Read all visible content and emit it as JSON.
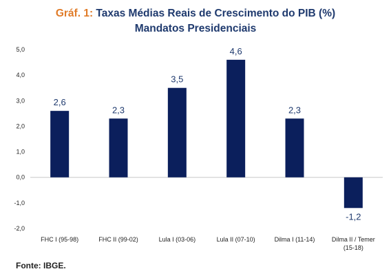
{
  "title": {
    "prefix": "Gráf. 1:",
    "line1": "Taxas Médias Reais de Crescimento do PIB (%)",
    "line2": "Mandatos Presidenciais"
  },
  "source": "Fonte: IBGE.",
  "colors": {
    "bar": "#0b1f5c",
    "accent": "#e07b28",
    "title": "#1f3a6e"
  },
  "chart_data": {
    "type": "bar",
    "categories": [
      [
        "FHC I (95-98)"
      ],
      [
        "FHC II (99-02)"
      ],
      [
        "Lula I (03-06)"
      ],
      [
        "Lula II (07-10)"
      ],
      [
        "Dilma I (11-14)"
      ],
      [
        "Dilma II / Temer",
        "(15-18)"
      ]
    ],
    "values": [
      2.6,
      2.3,
      3.5,
      4.6,
      2.3,
      -1.2
    ],
    "value_labels": [
      "2,6",
      "2,3",
      "3,5",
      "4,6",
      "2,3",
      "-1,2"
    ],
    "ylim": [
      -2.0,
      5.0
    ],
    "yticks": [
      5.0,
      4.0,
      3.0,
      2.0,
      1.0,
      0.0,
      -1.0,
      -2.0
    ],
    "ytick_labels": [
      "5,0",
      "4,0",
      "3,0",
      "2,0",
      "1,0",
      "0,0",
      "-1,0",
      "-2,0"
    ],
    "grid": false
  }
}
